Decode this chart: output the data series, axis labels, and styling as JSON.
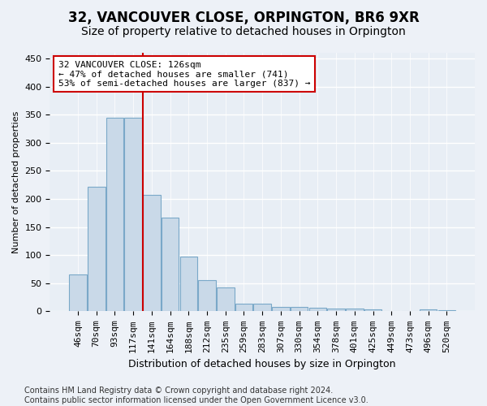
{
  "title": "32, VANCOUVER CLOSE, ORPINGTON, BR6 9XR",
  "subtitle": "Size of property relative to detached houses in Orpington",
  "xlabel": "Distribution of detached houses by size in Orpington",
  "ylabel": "Number of detached properties",
  "bin_labels": [
    "46sqm",
    "70sqm",
    "93sqm",
    "117sqm",
    "141sqm",
    "164sqm",
    "188sqm",
    "212sqm",
    "235sqm",
    "259sqm",
    "283sqm",
    "307sqm",
    "330sqm",
    "354sqm",
    "378sqm",
    "401sqm",
    "425sqm",
    "449sqm",
    "473sqm",
    "496sqm",
    "520sqm"
  ],
  "bar_values": [
    65,
    222,
    345,
    345,
    207,
    167,
    97,
    56,
    42,
    13,
    13,
    8,
    8,
    7,
    5,
    5,
    4,
    1,
    0,
    3,
    2
  ],
  "bar_color": "#c9d9e8",
  "bar_edge_color": "#7aa8c8",
  "background_color": "#e8eef5",
  "fig_background_color": "#edf1f7",
  "grid_color": "#ffffff",
  "vline_x": 3.5,
  "vline_color": "#cc0000",
  "annotation_text": "32 VANCOUVER CLOSE: 126sqm\n← 47% of detached houses are smaller (741)\n53% of semi-detached houses are larger (837) →",
  "annotation_box_color": "#ffffff",
  "annotation_box_edge_color": "#cc0000",
  "footer_text": "Contains HM Land Registry data © Crown copyright and database right 2024.\nContains public sector information licensed under the Open Government Licence v3.0.",
  "ylim": [
    0,
    460
  ],
  "yticks": [
    0,
    50,
    100,
    150,
    200,
    250,
    300,
    350,
    400,
    450
  ],
  "title_fontsize": 12,
  "subtitle_fontsize": 10,
  "xlabel_fontsize": 9,
  "ylabel_fontsize": 8,
  "tick_fontsize": 8,
  "footer_fontsize": 7
}
